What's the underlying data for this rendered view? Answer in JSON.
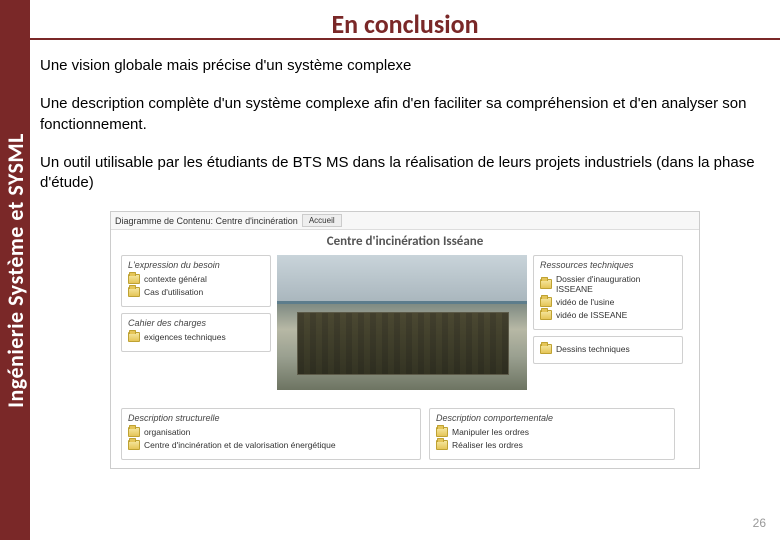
{
  "sidebar": {
    "label": "Ingénierie Système et SYSML"
  },
  "title": "En conclusion",
  "bullets": [
    "Une vision globale mais précise d'un système complexe",
    "Une description complète d'un système complexe afin d'en faciliter sa compréhension et d'en analyser son fonctionnement.",
    "Un outil utilisable par les étudiants de BTS MS dans la réalisation de leurs projets industriels (dans la phase d'étude)"
  ],
  "diagram": {
    "breadcrumb": "Diagramme de Contenu: Centre d'incinération",
    "tab": "Accueil",
    "heading": "Centre d'incinération Isséane",
    "panels": {
      "expression": {
        "title": "L'expression du besoin",
        "items": [
          "contexte général",
          "Cas d'utilisation"
        ]
      },
      "ressources": {
        "title": "Ressources techniques",
        "items": [
          "Dossier d'inauguration ISSEANE",
          "vidéo de l'usine",
          "vidéo de ISSEANE"
        ]
      },
      "cahier": {
        "title": "Cahier des charges",
        "items": [
          "exigences techniques"
        ]
      },
      "dessins": {
        "title": "",
        "items": [
          "Dessins techniques"
        ]
      },
      "structurelle": {
        "title": "Description structurelle",
        "items": [
          "organisation",
          "Centre d'incinération et de valorisation énergétique"
        ]
      },
      "comportementale": {
        "title": "Description comportementale",
        "items": [
          "Manipuler les ordres",
          "Réaliser les ordres"
        ]
      }
    }
  },
  "pagenum": "26",
  "colors": {
    "accent": "#7a2828",
    "text": "#000000",
    "page_bg": "#ffffff",
    "panel_border": "#d0d0d0"
  }
}
